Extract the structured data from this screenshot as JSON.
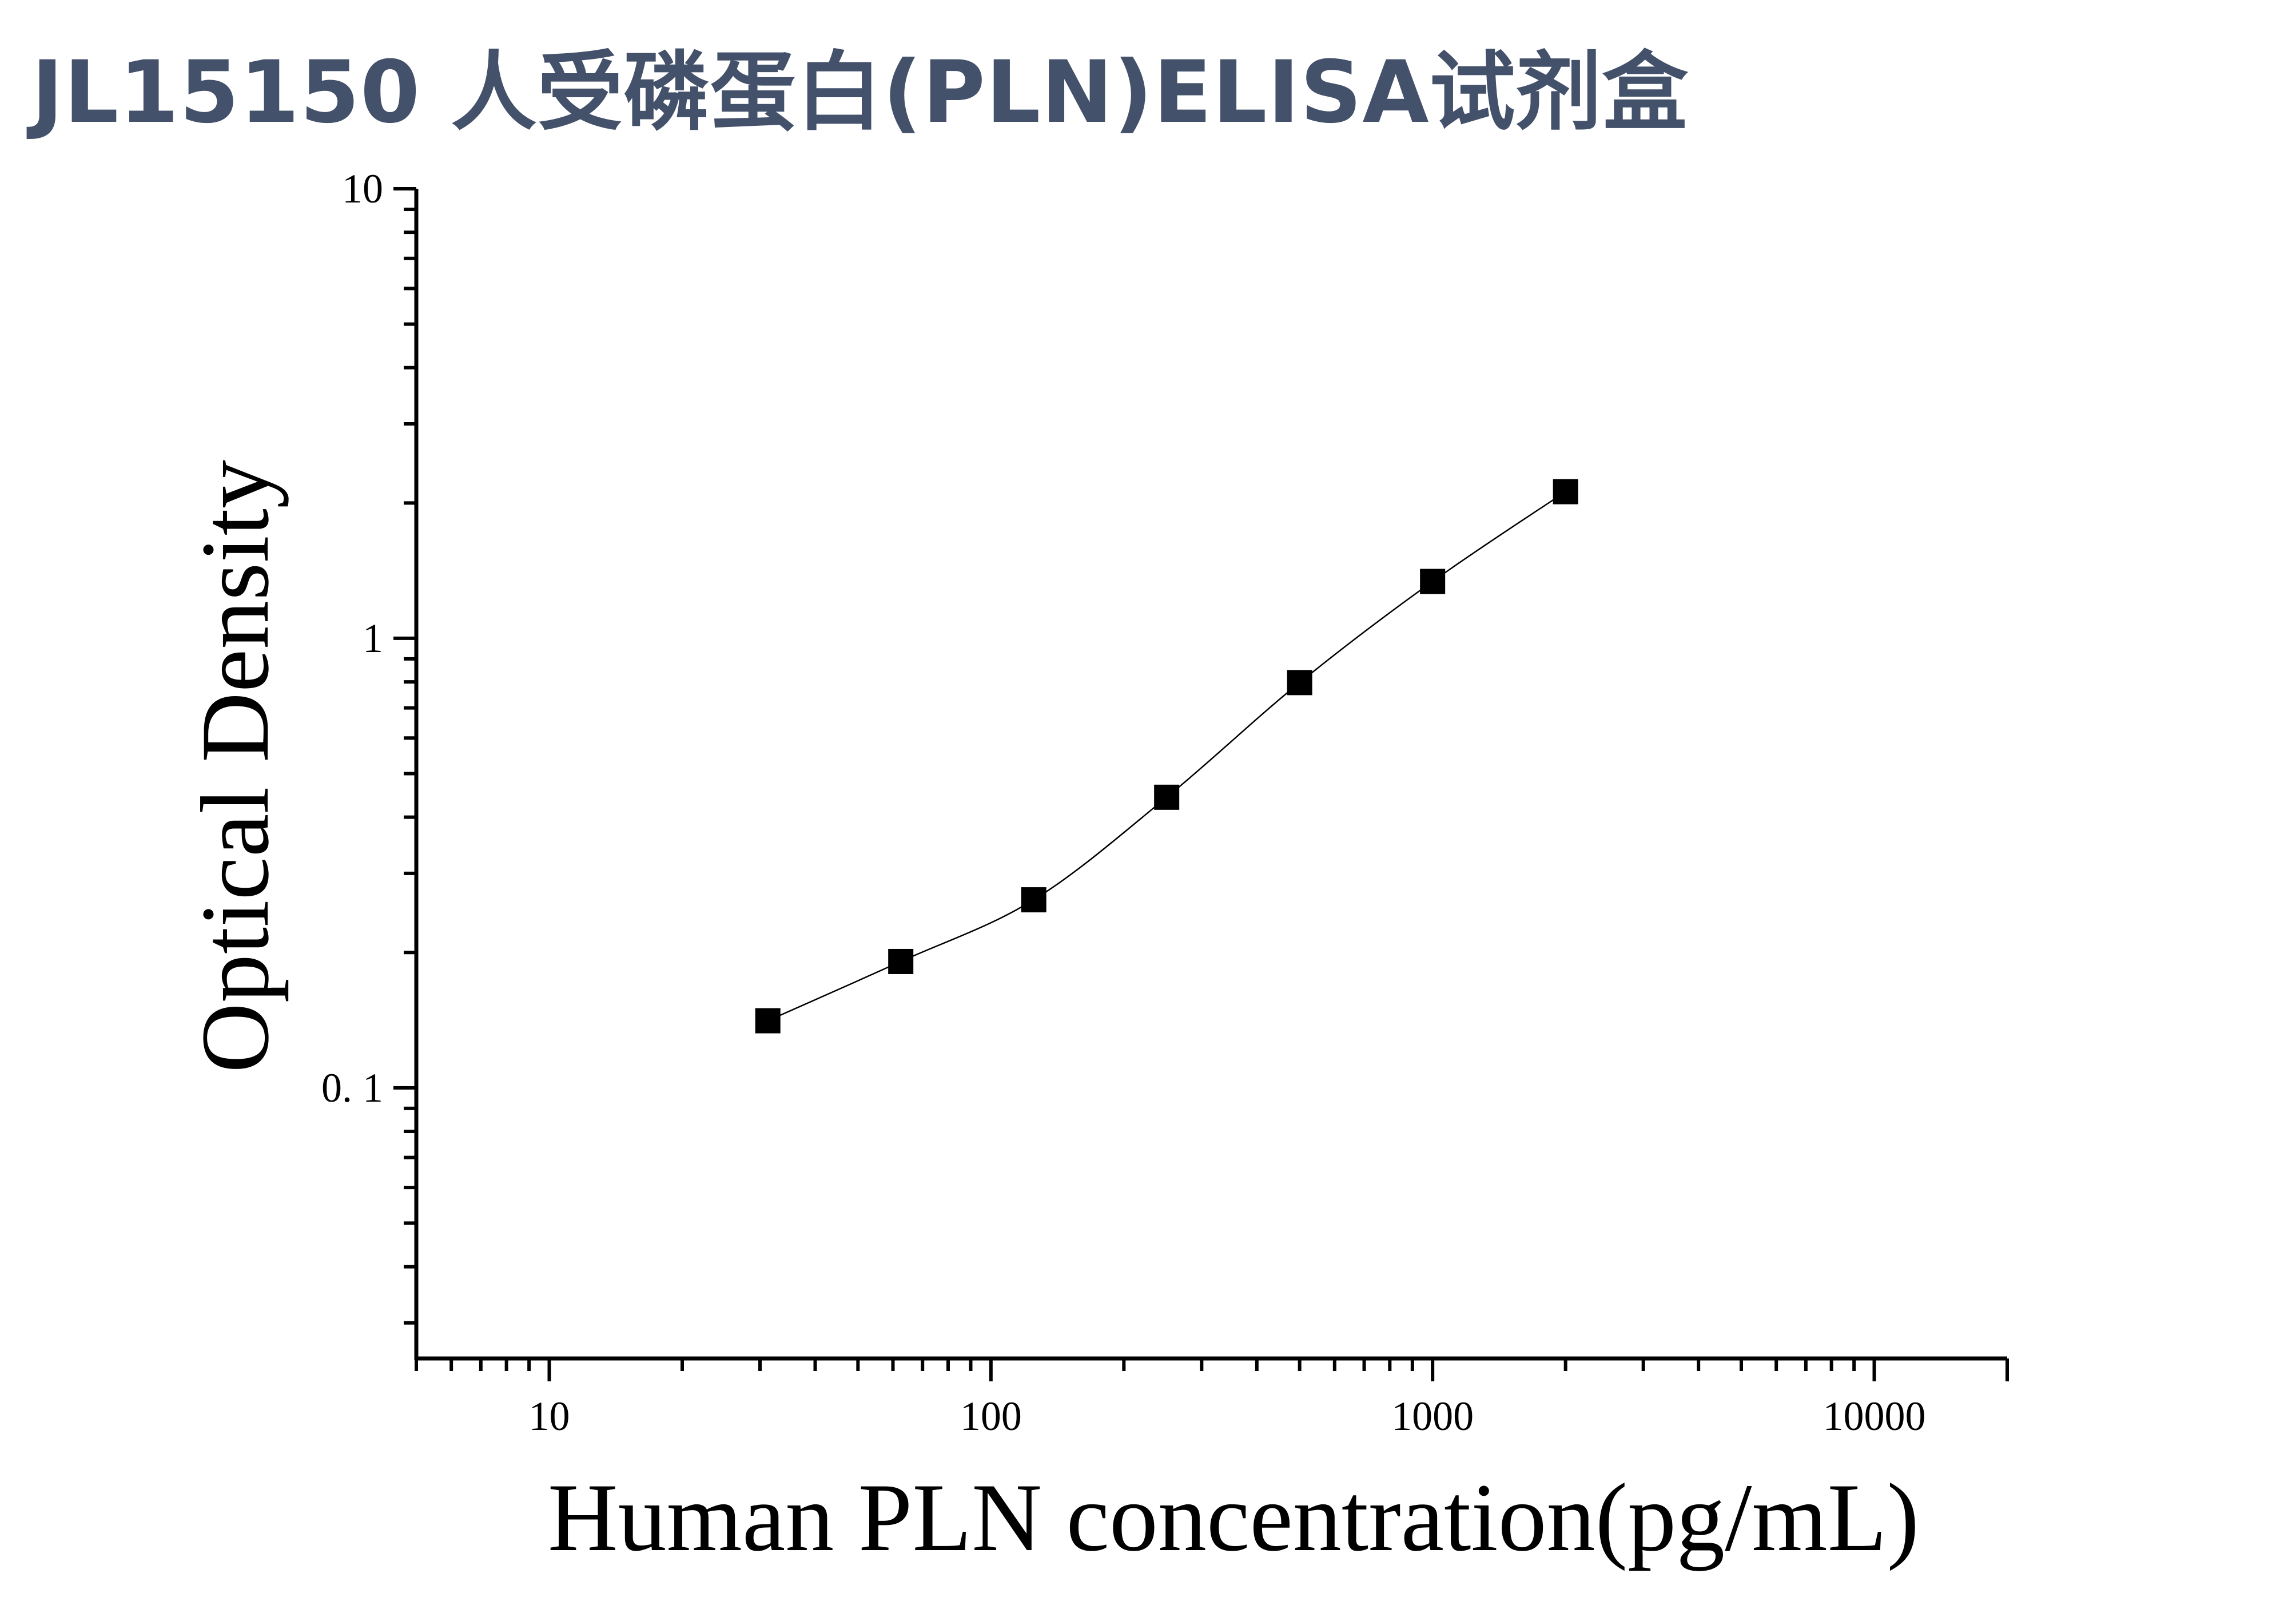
{
  "title": "JL15150 人受磷蛋白(PLN)ELISA试剂盒",
  "chart_data": {
    "type": "scatter",
    "xlabel": "Human PLN concentration(pg/mL)",
    "ylabel": "Optical Density",
    "xscale": "log",
    "yscale": "log",
    "xlim": [
      5,
      20000
    ],
    "ylim": [
      0.025,
      10
    ],
    "x_ticks": [
      {
        "value": 10,
        "label": "10"
      },
      {
        "value": 100,
        "label": "100"
      },
      {
        "value": 1000,
        "label": "1000"
      },
      {
        "value": 10000,
        "label": "10000"
      }
    ],
    "y_ticks": [
      {
        "value": 0.1,
        "label": "0. 1"
      },
      {
        "value": 1,
        "label": "1"
      },
      {
        "value": 10,
        "label": "10"
      }
    ],
    "series": [
      {
        "x": [
          31.25,
          62.5,
          125,
          250,
          500,
          1000,
          2000
        ],
        "y": [
          0.141,
          0.191,
          0.262,
          0.443,
          0.797,
          1.338,
          2.119
        ],
        "marker": "square",
        "color": "#000000",
        "fit_curve": true
      }
    ],
    "grid": false
  }
}
